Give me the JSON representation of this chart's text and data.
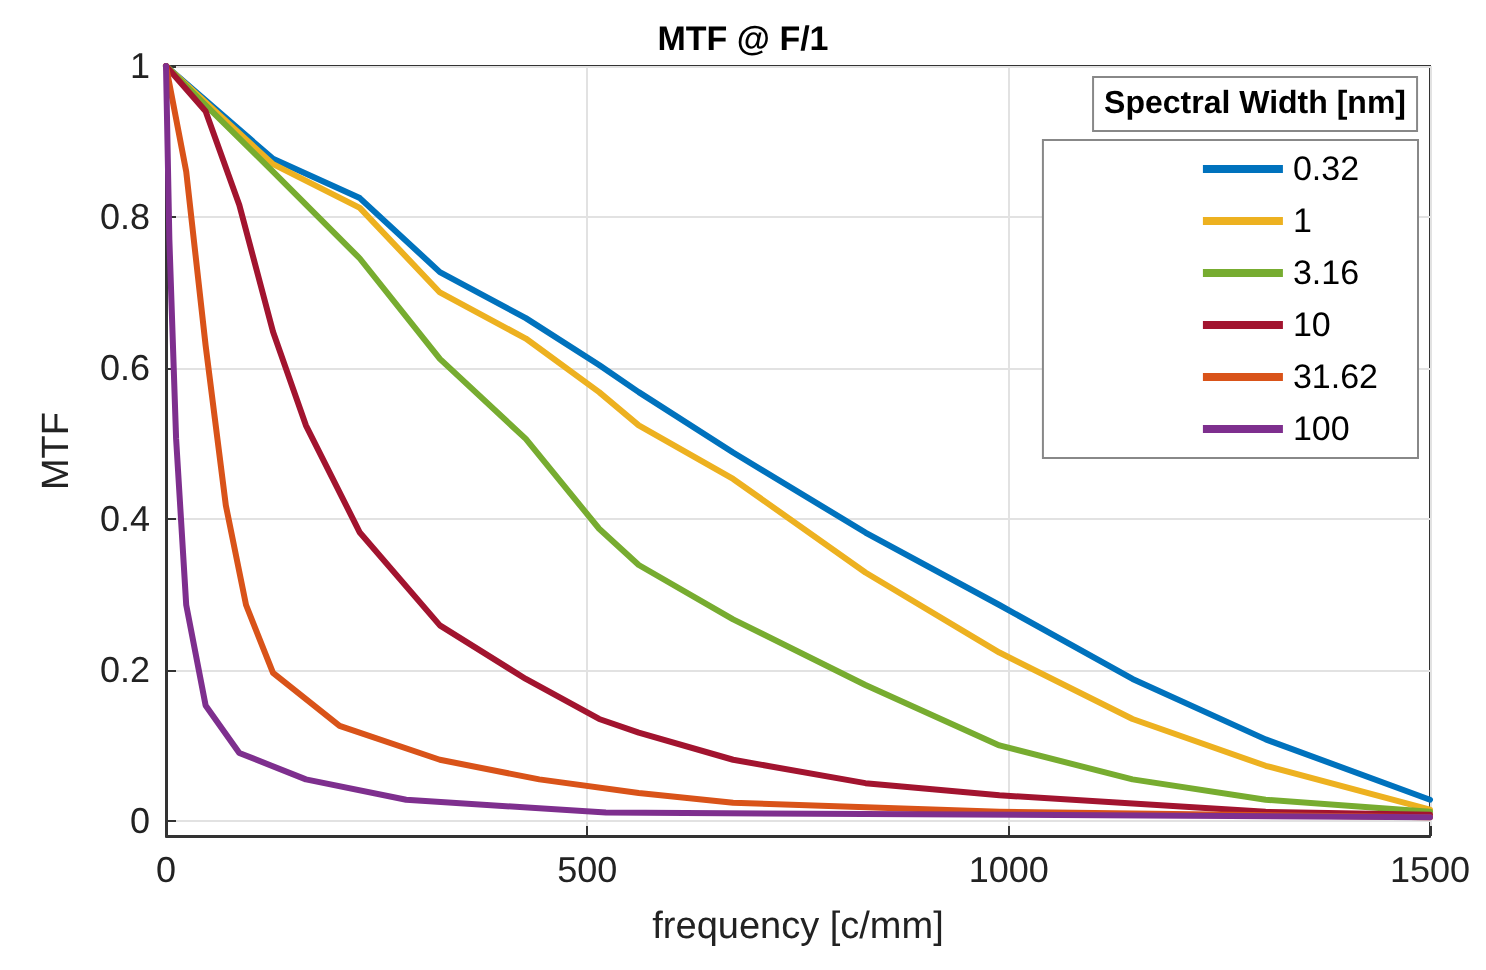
{
  "chart_data": {
    "type": "line",
    "title": "MTF @ F/1",
    "xlabel": "frequency [c/mm]",
    "ylabel": "MTF",
    "legend_title": "Spectral Width [nm]",
    "xlim": [
      0,
      1500
    ],
    "xticks": [
      0,
      500,
      1000,
      1500
    ],
    "ylim": [
      -0.02,
      1
    ],
    "yticks": [
      0,
      0.2,
      0.4,
      0.6,
      0.8,
      1
    ],
    "grid": true,
    "legend": "top right",
    "marker": "none",
    "line_style": "solid",
    "series": [
      {
        "name": "0.32",
        "color": "#0072bd",
        "x": [
          0,
          127,
          230,
          325,
          427,
          514,
          561,
          673,
          830,
          989,
          1147,
          1305,
          1500
        ],
        "values": [
          1,
          0.877,
          0.825,
          0.727,
          0.666,
          0.604,
          0.568,
          0.488,
          0.382,
          0.286,
          0.188,
          0.108,
          0.028
        ]
      },
      {
        "name": "1",
        "color": "#edb120",
        "x": [
          0,
          127,
          230,
          325,
          427,
          514,
          561,
          673,
          830,
          989,
          1147,
          1305,
          1500
        ],
        "values": [
          1,
          0.87,
          0.812,
          0.7,
          0.639,
          0.568,
          0.524,
          0.453,
          0.329,
          0.223,
          0.135,
          0.073,
          0.015
        ]
      },
      {
        "name": "3.16",
        "color": "#77ac30",
        "x": [
          0,
          127,
          230,
          325,
          427,
          514,
          561,
          673,
          830,
          989,
          1147,
          1305,
          1500
        ],
        "values": [
          1,
          0.86,
          0.745,
          0.612,
          0.506,
          0.387,
          0.339,
          0.267,
          0.18,
          0.1,
          0.055,
          0.028,
          0.012
        ]
      },
      {
        "name": "10",
        "color": "#a2142f",
        "x": [
          0,
          47,
          87,
          127,
          166,
          230,
          325,
          427,
          514,
          561,
          673,
          830,
          989,
          1305,
          1500
        ],
        "values": [
          1,
          0.94,
          0.816,
          0.648,
          0.524,
          0.382,
          0.259,
          0.188,
          0.135,
          0.117,
          0.081,
          0.05,
          0.034,
          0.012,
          0.008
        ]
      },
      {
        "name": "31.62",
        "color": "#d95319",
        "x": [
          0,
          24,
          47,
          71,
          95,
          127,
          206,
          325,
          443,
          561,
          673,
          989,
          1500
        ],
        "values": [
          1,
          0.86,
          0.63,
          0.418,
          0.286,
          0.196,
          0.126,
          0.081,
          0.055,
          0.037,
          0.024,
          0.012,
          0.005
        ]
      },
      {
        "name": "100",
        "color": "#7e2f8e",
        "x": [
          0,
          4,
          12,
          24,
          47,
          87,
          166,
          285,
          522,
          1500
        ],
        "values": [
          1,
          0.77,
          0.506,
          0.286,
          0.153,
          0.09,
          0.055,
          0.028,
          0.011,
          0.005
        ]
      }
    ]
  }
}
